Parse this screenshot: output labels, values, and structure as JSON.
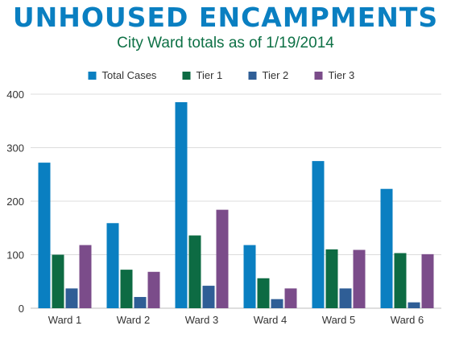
{
  "header": {
    "title": "UNHOUSED ENCAMPMENTS",
    "subtitle": "City Ward totals as of 1/19/2014",
    "title_color": "#0a7fc1",
    "subtitle_color": "#0e7146"
  },
  "chart_data": {
    "type": "bar",
    "title": "UNHOUSED ENCAMPMENTS",
    "subtitle": "City Ward totals as of 1/19/2014",
    "xlabel": "",
    "ylabel": "",
    "categories": [
      "Ward 1",
      "Ward 2",
      "Ward 3",
      "Ward 4",
      "Ward 5",
      "Ward 6"
    ],
    "series": [
      {
        "name": "Total Cases",
        "color": "#0a7fc1",
        "values": [
          272,
          159,
          385,
          118,
          275,
          223
        ]
      },
      {
        "name": "Tier 1",
        "color": "#0d6b43",
        "values": [
          100,
          72,
          136,
          56,
          110,
          103
        ]
      },
      {
        "name": "Tier 2",
        "color": "#2f5e96",
        "values": [
          37,
          21,
          42,
          17,
          37,
          11
        ]
      },
      {
        "name": "Tier 3",
        "color": "#7b4c8a",
        "values": [
          118,
          68,
          184,
          37,
          109,
          101
        ]
      }
    ],
    "ylim": [
      0,
      400
    ],
    "yticks": [
      0,
      100,
      200,
      300,
      400
    ],
    "grid": true,
    "legend_position": "top-center"
  }
}
